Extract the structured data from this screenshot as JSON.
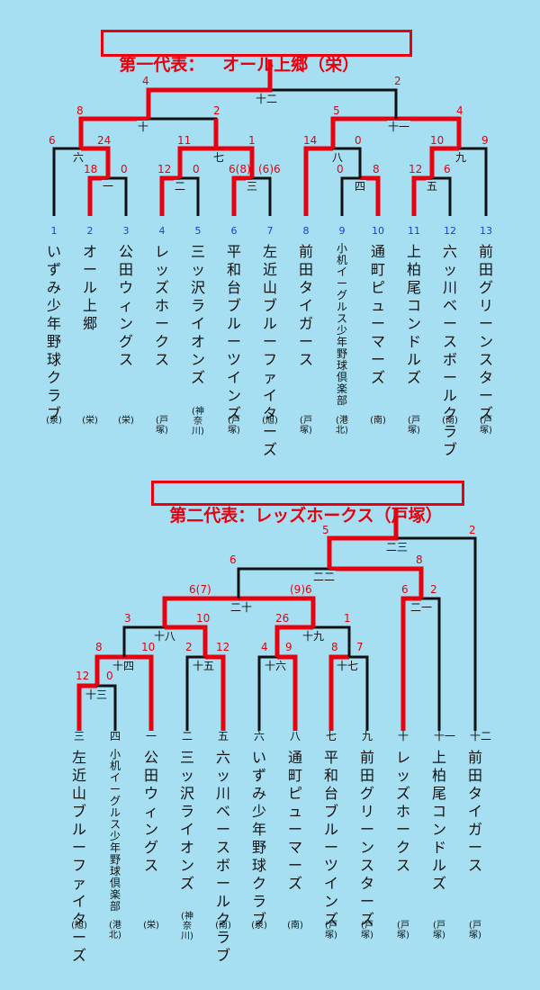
{
  "bracket1": {
    "title_prefix": "第一代表：",
    "title_winner": "オール上郷（栄）",
    "round_labels": [
      "十二",
      "十",
      "十一",
      "六",
      "七",
      "八",
      "九",
      "一",
      "二",
      "三",
      "四",
      "五"
    ],
    "scores": [
      "4",
      "2",
      "8",
      "2",
      "5",
      "4",
      "6",
      "24",
      "11",
      "1",
      "14",
      "0",
      "10",
      "9",
      "18",
      "0",
      "12",
      "0",
      "6(8)",
      "(6)6",
      "0",
      "8",
      "12",
      "6"
    ],
    "seeds": [
      "1",
      "2",
      "3",
      "4",
      "5",
      "6",
      "7",
      "8",
      "9",
      "10",
      "11",
      "12",
      "13"
    ],
    "teams": [
      {
        "name": "いずみ少年野球クラブ",
        "loc": "(泉)"
      },
      {
        "name": "オール上郷",
        "loc": "(栄)"
      },
      {
        "name": "公田ウィングス",
        "loc": "(栄)"
      },
      {
        "name": "レッズホークス",
        "loc": "(戸塚)"
      },
      {
        "name": "三ッ沢ライオンズ",
        "loc": "(神奈川)"
      },
      {
        "name": "平和台ブルーツインズ",
        "loc": "(戸塚)"
      },
      {
        "name": "左近山ブルーファイターズ",
        "loc": "(旭)"
      },
      {
        "name": "前田タイガース",
        "loc": "(戸塚)"
      },
      {
        "name": "小机イーグルス少年野球倶楽部",
        "loc": "(港北)"
      },
      {
        "name": "通町ピューマーズ",
        "loc": "(南)"
      },
      {
        "name": "上柏尾コンドルズ",
        "loc": "(戸塚)"
      },
      {
        "name": "六ッ川ベースボールクラブ",
        "loc": "(南)"
      },
      {
        "name": "前田グリーンスターズ",
        "loc": "(戸塚)"
      }
    ]
  },
  "bracket2": {
    "title_prefix": "第二代表：",
    "title_winner": "レッズホークス（戸塚）",
    "round_labels": [
      "二三",
      "二二",
      "二十",
      "二一",
      "十八",
      "十九",
      "十四",
      "十五",
      "十六",
      "十七",
      "十三"
    ],
    "scores": [
      "5",
      "2",
      "6",
      "8",
      "6(7)",
      "(9)6",
      "6",
      "2",
      "3",
      "10",
      "26",
      "1",
      "8",
      "10",
      "2",
      "12",
      "4",
      "9",
      "8",
      "7",
      "12",
      "0"
    ],
    "seeds": [
      "三",
      "四",
      "一",
      "二",
      "五",
      "六",
      "八",
      "七",
      "九",
      "十",
      "十一",
      "十二"
    ],
    "teams": [
      {
        "name": "左近山ブルーファイターズ",
        "loc": "(旭)"
      },
      {
        "name": "小机イーグルス少年野球倶楽部",
        "loc": "(港北)"
      },
      {
        "name": "公田ウィングス",
        "loc": "(栄)"
      },
      {
        "name": "三ッ沢ライオンズ",
        "loc": "(神奈川)"
      },
      {
        "name": "六ッ川ベースボールクラブ",
        "loc": "(南)"
      },
      {
        "name": "いずみ少年野球クラブ",
        "loc": "(泉)"
      },
      {
        "name": "通町ピューマーズ",
        "loc": "(南)"
      },
      {
        "name": "平和台ブルーツインズ",
        "loc": "(戸塚)"
      },
      {
        "name": "前田グリーンスターズ",
        "loc": "(戸塚)"
      },
      {
        "name": "レッズホークス",
        "loc": "(戸塚)"
      },
      {
        "name": "上柏尾コンドルズ",
        "loc": "(戸塚)"
      },
      {
        "name": "前田タイガース",
        "loc": "(戸塚)"
      }
    ]
  },
  "colors": {
    "background": "#a6dff2",
    "winner_line": "#e8000e",
    "line": "#111111",
    "seed": "#1a3fe0"
  }
}
